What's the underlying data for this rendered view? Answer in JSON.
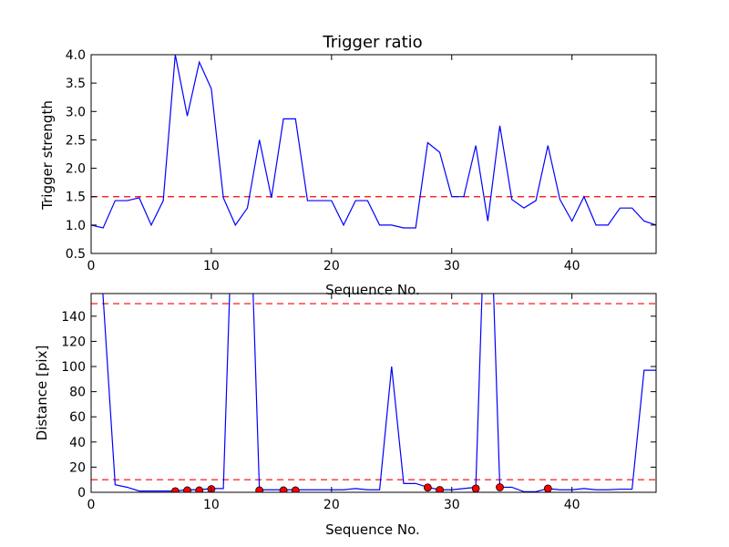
{
  "chart_data": [
    {
      "type": "line",
      "title": "Trigger ratio",
      "xlabel": "Sequence No.",
      "ylabel": "Trigger strength",
      "xlim": [
        0,
        47
      ],
      "ylim": [
        0.5,
        4.0
      ],
      "xticks": [
        0,
        10,
        20,
        30,
        40
      ],
      "xtick_labels": [
        "0",
        "10",
        "20",
        "30",
        "40"
      ],
      "yticks": [
        0.5,
        1.0,
        1.5,
        2.0,
        2.5,
        3.0,
        3.5,
        4.0
      ],
      "ytick_labels": [
        "0.5",
        "1.0",
        "1.5",
        "2.0",
        "2.5",
        "3.0",
        "3.5",
        "4.0"
      ],
      "grid": false,
      "series": [
        {
          "color": "#0000ff",
          "x": [
            0,
            1,
            2,
            3,
            4,
            5,
            6,
            7,
            8,
            9,
            10,
            11,
            12,
            13,
            14,
            15,
            16,
            17,
            18,
            19,
            20,
            21,
            22,
            23,
            24,
            25,
            26,
            27,
            28,
            29,
            30,
            31,
            32,
            33,
            34,
            35,
            36,
            37,
            38,
            39,
            40,
            41,
            42,
            43,
            44,
            45,
            46,
            47
          ],
          "y": [
            1.0,
            0.95,
            1.43,
            1.43,
            1.48,
            1.0,
            1.43,
            4.0,
            2.92,
            3.87,
            3.4,
            1.48,
            1.0,
            1.3,
            2.5,
            1.48,
            2.87,
            2.87,
            1.43,
            1.43,
            1.43,
            1.0,
            1.43,
            1.43,
            1.0,
            1.0,
            0.95,
            0.95,
            2.45,
            2.28,
            1.5,
            1.5,
            2.4,
            1.07,
            2.75,
            1.45,
            1.3,
            1.43,
            2.4,
            1.45,
            1.07,
            1.5,
            1.0,
            1.0,
            1.3,
            1.3,
            1.07,
            1.0
          ]
        }
      ],
      "hlines": [
        {
          "y": 1.5,
          "color": "#ff0000",
          "style": "dashed"
        }
      ]
    },
    {
      "type": "line",
      "title": "",
      "xlabel": "Sequence No.",
      "ylabel": "Distance [pix]",
      "xlim": [
        0,
        47
      ],
      "ylim": [
        0,
        158
      ],
      "xticks": [
        0,
        10,
        20,
        30,
        40
      ],
      "xtick_labels": [
        "0",
        "10",
        "20",
        "30",
        "40"
      ],
      "yticks": [
        0,
        20,
        40,
        60,
        80,
        100,
        120,
        140
      ],
      "ytick_labels": [
        "0",
        "20",
        "40",
        "60",
        "80",
        "100",
        "120",
        "140"
      ],
      "grid": false,
      "series": [
        {
          "color": "#0000ff",
          "x": [
            0,
            1,
            2,
            3,
            4,
            5,
            6,
            7,
            8,
            9,
            10,
            11,
            12,
            13,
            14,
            15,
            16,
            17,
            18,
            19,
            20,
            21,
            22,
            23,
            24,
            25,
            26,
            27,
            28,
            29,
            30,
            31,
            32,
            33,
            34,
            35,
            36,
            37,
            38,
            39,
            40,
            41,
            42,
            43,
            44,
            45,
            46,
            47
          ],
          "y": [
            300,
            155,
            6,
            4,
            1,
            1,
            1,
            1,
            2,
            2,
            3,
            3,
            300,
            300,
            2,
            2,
            2,
            2,
            2,
            2,
            2,
            2,
            3,
            2,
            2,
            100,
            7,
            7,
            4,
            2,
            2,
            3,
            4,
            300,
            4,
            4,
            0.5,
            0.5,
            3,
            2,
            2,
            3,
            2,
            2,
            2.5,
            2.5,
            97,
            97
          ]
        }
      ],
      "markers": {
        "color": "#ff0000",
        "x": [
          7,
          8,
          9,
          10,
          14,
          16,
          17,
          28,
          29,
          32,
          34,
          38
        ],
        "y": [
          0.8,
          1.5,
          1.5,
          2.5,
          1.5,
          1.5,
          1.5,
          3.8,
          1.8,
          3,
          4,
          3
        ]
      },
      "hlines": [
        {
          "y": 150,
          "color": "#ff0000",
          "style": "dashed"
        },
        {
          "y": 10,
          "color": "#ff0000",
          "style": "dashed"
        }
      ]
    }
  ]
}
